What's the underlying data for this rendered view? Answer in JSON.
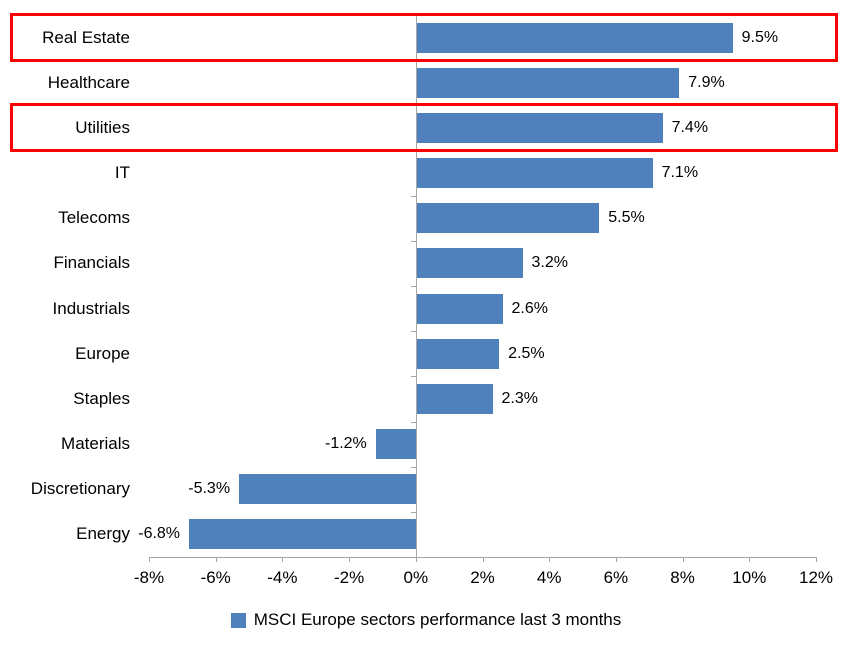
{
  "chart_data": {
    "type": "bar",
    "orientation": "horizontal",
    "title": "",
    "xlabel": "",
    "ylabel": "",
    "categories": [
      "Real Estate",
      "Healthcare",
      "Utilities",
      "IT",
      "Telecoms",
      "Financials",
      "Industrials",
      "Europe",
      "Staples",
      "Materials",
      "Discretionary",
      "Energy"
    ],
    "values": [
      9.5,
      7.9,
      7.4,
      7.1,
      5.5,
      3.2,
      2.6,
      2.5,
      2.3,
      -1.2,
      -5.3,
      -6.8
    ],
    "data_labels": [
      "9.5%",
      "7.9%",
      "7.4%",
      "7.1%",
      "5.5%",
      "3.2%",
      "2.6%",
      "2.5%",
      "2.3%",
      "-1.2%",
      "-5.3%",
      "-6.8%"
    ],
    "xlim": [
      -8,
      12
    ],
    "x_tick_values": [
      -8,
      -6,
      -4,
      -2,
      0,
      2,
      4,
      6,
      8,
      10,
      12
    ],
    "x_tick_labels": [
      "-8%",
      "-6%",
      "-4%",
      "-2%",
      "0%",
      "2%",
      "4%",
      "6%",
      "8%",
      "10%",
      "12%"
    ],
    "grid": false,
    "legend": "MSCI Europe sectors performance last 3 months",
    "legend_position": "bottom-center",
    "bar_color": "#4f81bd",
    "axis_color": "#a6a6a6",
    "highlight_color": "#fe0000",
    "highlighted_categories": [
      "Real Estate",
      "Utilities"
    ]
  }
}
